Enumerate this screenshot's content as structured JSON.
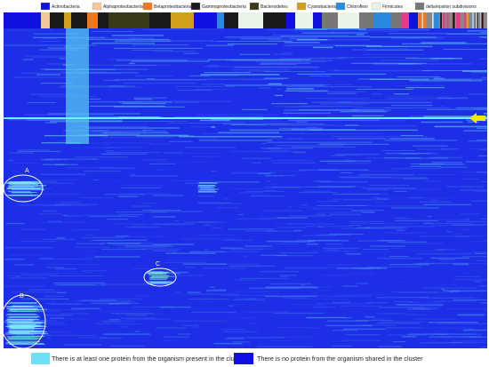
{
  "legend": {
    "items": [
      {
        "label": "Actinobacteria",
        "color": "#1010e0"
      },
      {
        "label": "Alphaproteobacteria",
        "color": "#f2c89a"
      },
      {
        "label": "Betaproteobacteria",
        "color": "#f07a1a"
      },
      {
        "label": "Gammaproteobacteria",
        "color": "#1a1a1a"
      },
      {
        "label": "Bacteroidetes",
        "color": "#3a3a1a"
      },
      {
        "label": "Cyanobacteria",
        "color": "#d4a017"
      },
      {
        "label": "Chloroflexi",
        "color": "#2a8ae0"
      },
      {
        "label": "Firmicutes",
        "color": "#e8f4e8"
      },
      {
        "label": "delta/epsilon subdivisions",
        "color": "#777777"
      }
    ]
  },
  "annotations": [
    "A",
    "B",
    "C"
  ],
  "key": {
    "present": "There is at least one protein from the organism present  in the cluster",
    "absent": "There is no protein from the organism shared in the cluster"
  }
}
